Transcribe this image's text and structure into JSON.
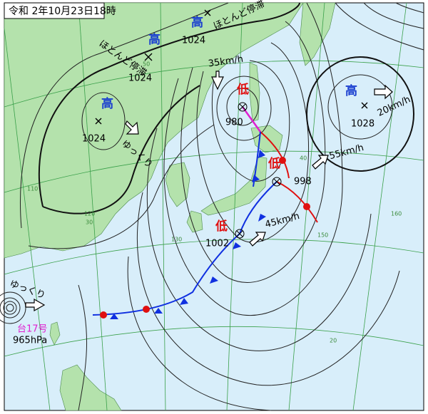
{
  "title": "令和 2年10月23日18時",
  "highs": [
    {
      "mark": "高",
      "pressure": 1024,
      "movement": "ほとんど停滞"
    },
    {
      "mark": "高",
      "pressure": 1024,
      "movement": "ほとんど停滞"
    },
    {
      "mark": "高",
      "pressure": 1024,
      "movement": "ゆっくり"
    },
    {
      "mark": "高",
      "pressure": 1028,
      "speed": "20km/h"
    }
  ],
  "lows": [
    {
      "mark": "低",
      "pressure": 980,
      "speed": "35km/h"
    },
    {
      "mark": "低",
      "pressure": 998,
      "speed": "55km/h"
    },
    {
      "mark": "低",
      "pressure": 1002,
      "speed": "45km/h"
    }
  ],
  "typhoon": {
    "name": "台17号",
    "pressure": "965hPa",
    "movement": "ゆっくり"
  },
  "grid_labels": [
    "110",
    "120",
    "130",
    "150",
    "160",
    "50",
    "40",
    "30",
    "20"
  ]
}
